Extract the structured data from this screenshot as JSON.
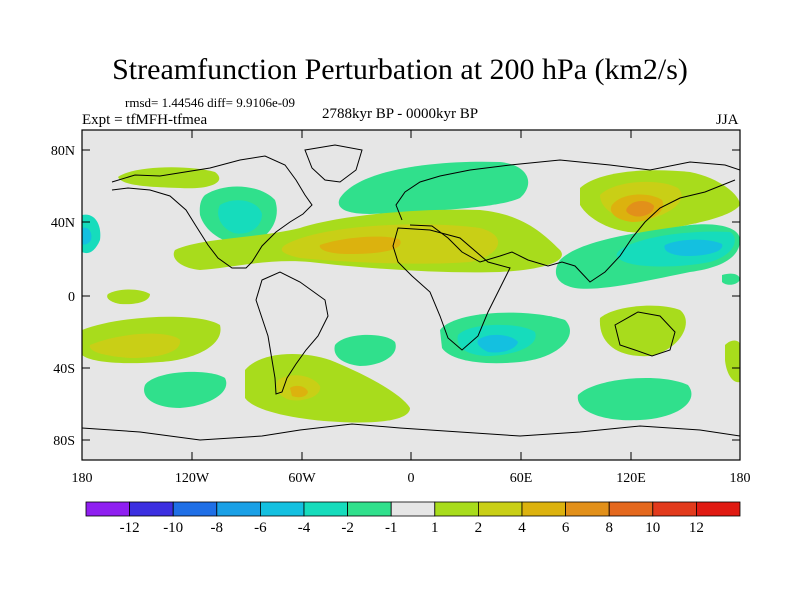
{
  "title": "Streamfunction Perturbation at 200 hPa (km2/s)",
  "stats": "rmsd= 1.44546 diff= 9.9106e-09",
  "experiment": "Expt = tfMFH-tfmea",
  "period": "2788kyr BP - 0000kyr BP",
  "season": "JJA",
  "axes": {
    "y_ticks": [
      "80N",
      "40N",
      "0",
      "40S",
      "80S"
    ],
    "x_ticks": [
      "180",
      "120W",
      "60W",
      "0",
      "60E",
      "120E",
      "180"
    ]
  },
  "colorbar": {
    "labels": [
      "-12",
      "-10",
      "-8",
      "-6",
      "-4",
      "-2",
      "-1",
      "1",
      "2",
      "4",
      "6",
      "8",
      "10",
      "12"
    ],
    "colors": [
      "#8f1ff0",
      "#3c2fe0",
      "#1f6fe6",
      "#1aa0e6",
      "#14c0e0",
      "#16dcbc",
      "#30e08c",
      "#e6e6e6",
      "#a8dc1c",
      "#c9cf16",
      "#dcb20e",
      "#e2901a",
      "#e4681e",
      "#e23a1c",
      "#e01a12"
    ]
  }
}
